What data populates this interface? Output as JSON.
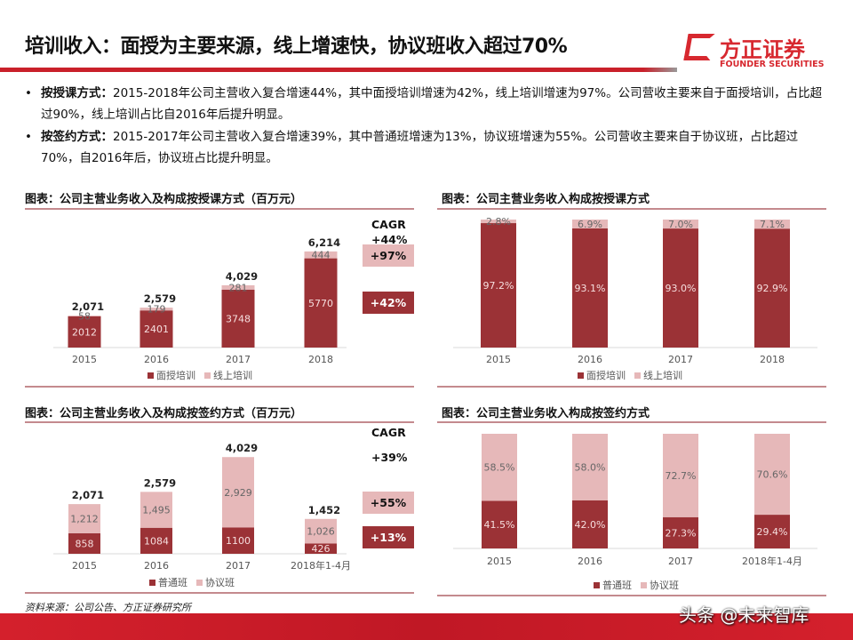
{
  "header": {
    "title": "培训收入：面授为主要来源，线上增速快，协议班收入超过70%",
    "logo_cn": "方正证券",
    "logo_en": "FOUNDER SECURITIES"
  },
  "bullets": [
    {
      "label": "按授课方式：",
      "text": "2015-2018年公司主营收入复合增速44%，其中面授培训增速为42%，线上培训增速为97%。公司营收主要来自于面授培训，占比超过90%，线上培训占比自2016年后提升明显。"
    },
    {
      "label": "按签约方式：",
      "text": "2015-2017年公司主营收入复合增速39%，其中普通班增速为13%，协议班增速为55%。公司营收主要来自于协议班，占比超过70%，自2016年后，协议班占比提升明显。"
    }
  ],
  "colors": {
    "dark": "#9b3236",
    "light": "#e6b8b9",
    "brand": "#d7282f"
  },
  "chart_data": [
    {
      "type": "bar",
      "stacked": true,
      "title": "图表：公司主营业务收入及构成按授课方式（百万元）",
      "categories": [
        "2015",
        "2016",
        "2017",
        "2018"
      ],
      "series": [
        {
          "name": "面授培训",
          "values": [
            2012,
            2401,
            3748,
            5770
          ],
          "labels": [
            "2012",
            "2401",
            "3748",
            "5770"
          ]
        },
        {
          "name": "线上培训",
          "values": [
            58,
            179,
            281,
            444
          ],
          "labels": [
            "58",
            "179",
            "281",
            "444"
          ]
        }
      ],
      "totals": [
        "2,071",
        "2,579",
        "4,029",
        "6,214"
      ],
      "annotations": {
        "cagr_label": "CAGR",
        "cagr_total": "+44%",
        "cagr_light": "+97%",
        "cagr_dark": "+42%"
      },
      "legend": "bottom"
    },
    {
      "type": "bar",
      "stacked": true,
      "title": "图表：公司主营业务收入构成按授课方式",
      "categories": [
        "2015",
        "2016",
        "2017",
        "2018"
      ],
      "series": [
        {
          "name": "面授培训",
          "values": [
            97.2,
            93.1,
            93.0,
            92.9
          ],
          "labels": [
            "97.2%",
            "93.1%",
            "93.0%",
            "92.9%"
          ]
        },
        {
          "name": "线上培训",
          "values": [
            2.8,
            6.9,
            7.0,
            7.1
          ],
          "labels": [
            "2.8%",
            "6.9%",
            "7.0%",
            "7.1%"
          ]
        }
      ],
      "ylim": [
        0,
        100
      ],
      "legend": "bottom"
    },
    {
      "type": "bar",
      "stacked": true,
      "title": "图表：公司主营业务收入及构成按签约方式（百万元）",
      "categories": [
        "2015",
        "2016",
        "2017",
        "2018年1-4月"
      ],
      "series": [
        {
          "name": "普通班",
          "values": [
            858,
            1084,
            1100,
            426
          ],
          "labels": [
            "858",
            "1084",
            "1100",
            "426"
          ]
        },
        {
          "name": "协议班",
          "values": [
            1212,
            1495,
            2929,
            1026
          ],
          "labels": [
            "1,212",
            "1,495",
            "2,929",
            "1,026"
          ]
        }
      ],
      "totals": [
        "2,071",
        "2,579",
        "4,029",
        "1,452"
      ],
      "annotations": {
        "cagr_label": "CAGR",
        "cagr_total": "+39%",
        "cagr_light": "+55%",
        "cagr_dark": "+13%"
      },
      "legend": "bottom"
    },
    {
      "type": "bar",
      "stacked": true,
      "title": "图表：公司主营业务收入构成按签约方式",
      "categories": [
        "2015",
        "2016",
        "2017",
        "2018年1-4月"
      ],
      "series": [
        {
          "name": "普通班",
          "values": [
            41.5,
            42.0,
            27.3,
            29.4
          ],
          "labels": [
            "41.5%",
            "42.0%",
            "27.3%",
            "29.4%"
          ]
        },
        {
          "name": "协议班",
          "values": [
            58.5,
            58.0,
            72.7,
            70.6
          ],
          "labels": [
            "58.5%",
            "58.0%",
            "72.7%",
            "70.6%"
          ]
        }
      ],
      "ylim": [
        0,
        100
      ],
      "legend": "bottom"
    }
  ],
  "footer": {
    "source": "资料来源：公司公告、方正证券研究所",
    "watermark": "头条 @未来智库"
  }
}
